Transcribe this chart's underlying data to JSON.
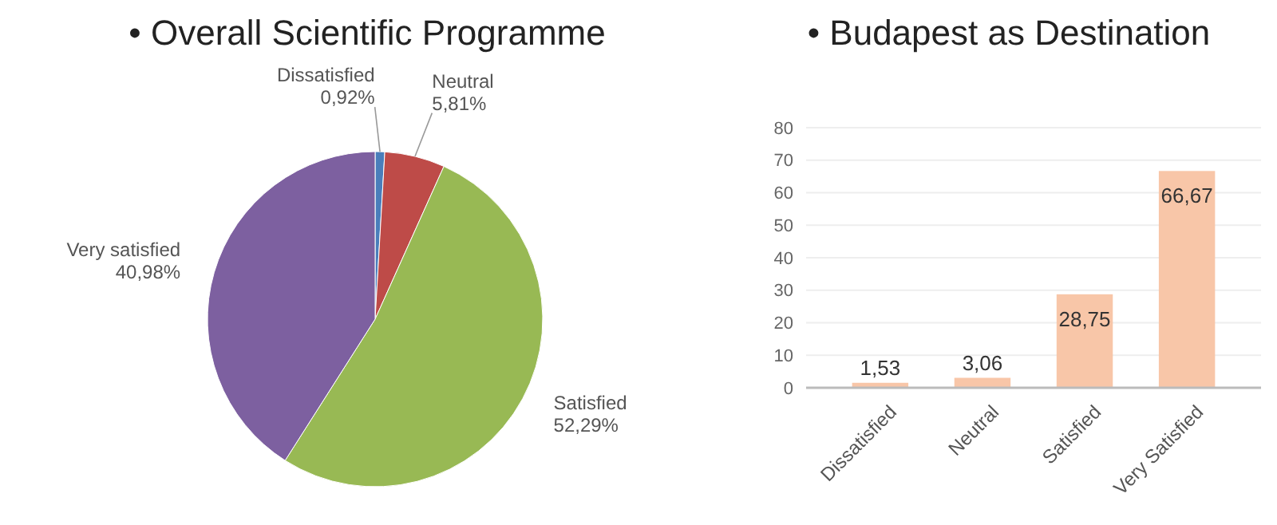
{
  "chart_data": [
    {
      "type": "pie",
      "title": "• Overall Scientific Programme",
      "categories": [
        "Dissatisfied",
        "Neutral",
        "Satisfied",
        "Very satisfied"
      ],
      "values": [
        0.92,
        5.81,
        52.29,
        40.98
      ],
      "colors": [
        "#4a7ebb",
        "#be4b48",
        "#98b954",
        "#7d60a0"
      ],
      "value_labels": [
        "0,92%",
        "5,81%",
        "52,29%",
        "40,98%"
      ]
    },
    {
      "type": "bar",
      "title": "• Budapest as Destination",
      "categories": [
        "Dissatisfied",
        "Neutral",
        "Satisfied",
        "Very Satisfied"
      ],
      "values": [
        1.53,
        3.06,
        28.75,
        66.67
      ],
      "color": "#f8c6a8",
      "value_labels": [
        "1,53",
        "3,06",
        "28,75",
        "66,67"
      ],
      "ylim": [
        0,
        80
      ],
      "yticks": [
        0,
        10,
        20,
        30,
        40,
        50,
        60,
        70,
        80
      ],
      "grid": "y"
    }
  ]
}
